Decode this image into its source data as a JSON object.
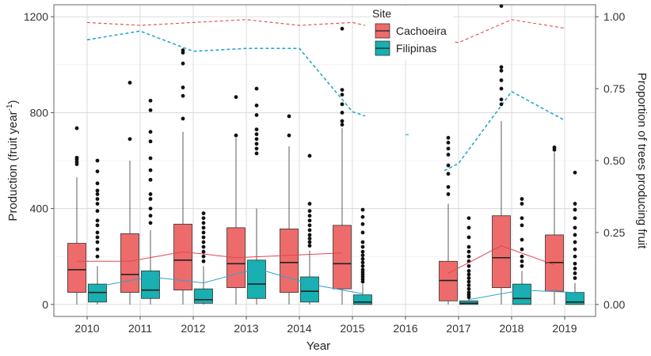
{
  "chart_data": {
    "type": "boxplot",
    "xlabel": "Year",
    "ylabel_left_main": "Production (fruit year",
    "ylabel_left_sup": "-1",
    "ylabel_left_end": ")",
    "ylabel_right": "Proportion of trees producing fruit",
    "categories": [
      "2010",
      "2011",
      "2012",
      "2013",
      "2014",
      "2015",
      "2016",
      "2017",
      "2018",
      "2019"
    ],
    "ylim_left": [
      -50,
      1250
    ],
    "yticks_left": [
      0,
      400,
      800,
      1200
    ],
    "ylim_right": [
      -0.0417,
      1.0417
    ],
    "yticks_right": [
      0.0,
      0.25,
      0.5,
      0.75,
      1.0
    ],
    "ytick_right_labels": [
      "0.00",
      "0.25",
      "0.50",
      "0.75",
      "1.00"
    ],
    "legend": {
      "title": "Site",
      "position": "top-center"
    },
    "colors": {
      "Cachoeira": "#ee6b6b",
      "Filipinas": "#18b0b0",
      "Cachoeira_dark": "#e0484f",
      "Filipinas_dark": "#2aa6cf"
    },
    "series": [
      {
        "name": "Cachoeira",
        "boxes": [
          {
            "year": "2010",
            "q1": 50,
            "median": 145,
            "q3": 255,
            "lo": 0,
            "hi": 530,
            "outliers": [
              585,
              595,
              605,
              612,
              735
            ]
          },
          {
            "year": "2011",
            "q1": 50,
            "median": 125,
            "q3": 295,
            "lo": 0,
            "hi": 600,
            "outliers": [
              690,
              925
            ]
          },
          {
            "year": "2012",
            "q1": 60,
            "median": 185,
            "q3": 335,
            "lo": 0,
            "hi": 720,
            "outliers": [
              775,
              870,
              905,
              1005,
              1050,
              1060
            ]
          },
          {
            "year": "2013",
            "q1": 70,
            "median": 170,
            "q3": 320,
            "lo": 0,
            "hi": 695,
            "outliers": [
              705,
              865
            ]
          },
          {
            "year": "2014",
            "q1": 50,
            "median": 175,
            "q3": 315,
            "lo": 0,
            "hi": 660,
            "outliers": [
              705,
              785
            ]
          },
          {
            "year": "2015",
            "q1": 65,
            "median": 170,
            "q3": 330,
            "lo": 0,
            "hi": 735,
            "outliers": [
              750,
              765,
              800,
              835,
              875,
              895,
              1150
            ]
          },
          {
            "year": "2017",
            "q1": 15,
            "median": 100,
            "q3": 180,
            "lo": 0,
            "hi": 420,
            "outliers": [
              460,
              490,
              545,
              580,
              625,
              650,
              675,
              695
            ]
          },
          {
            "year": "2018",
            "q1": 70,
            "median": 195,
            "q3": 370,
            "lo": 0,
            "hi": 765,
            "outliers": [
              835,
              855,
              900,
              935,
              975,
              990,
              1245
            ]
          },
          {
            "year": "2019",
            "q1": 55,
            "median": 175,
            "q3": 290,
            "lo": 0,
            "hi": 635,
            "outliers": [
              645,
              655
            ]
          }
        ],
        "line_left": [
          180,
          180,
          220,
          195,
          205,
          215
        ],
        "line_left_2017_2019": [
          130,
          245,
          165
        ],
        "proportion": [
          0.98,
          0.97,
          0.98,
          0.99,
          0.97,
          0.98
        ],
        "proportion_2017_2019": [
          0.91,
          0.99,
          0.96
        ]
      },
      {
        "name": "Filipinas",
        "boxes": [
          {
            "year": "2010",
            "q1": 10,
            "median": 50,
            "q3": 85,
            "lo": 0,
            "hi": 160,
            "outliers": [
              200,
              230,
              260,
              280,
              300,
              330,
              350,
              390,
              420,
              440,
              460,
              475,
              505,
              555,
              600
            ]
          },
          {
            "year": "2011",
            "q1": 25,
            "median": 60,
            "q3": 140,
            "lo": 0,
            "hi": 310,
            "outliers": [
              340,
              370,
              400,
              440,
              460,
              520,
              560,
              610,
              680,
              720,
              810,
              850
            ]
          },
          {
            "year": "2012",
            "q1": 5,
            "median": 20,
            "q3": 65,
            "lo": 0,
            "hi": 160,
            "outliers": [
              180,
              200,
              220,
              240,
              260,
              280,
              300,
              320,
              340,
              360,
              380
            ]
          },
          {
            "year": "2013",
            "q1": 25,
            "median": 85,
            "q3": 185,
            "lo": 0,
            "hi": 400,
            "outliers": [
              630,
              650,
              670,
              690,
              710,
              730,
              790,
              830,
              900
            ]
          },
          {
            "year": "2014",
            "q1": 10,
            "median": 55,
            "q3": 115,
            "lo": 0,
            "hi": 225,
            "outliers": [
              245,
              260,
              275,
              290,
              310,
              330,
              350,
              370,
              390,
              420,
              620
            ]
          },
          {
            "year": "2015",
            "q1": 0,
            "median": 10,
            "q3": 40,
            "lo": 0,
            "hi": 85,
            "outliers": [
              95,
              105,
              115,
              125,
              135,
              145,
              160,
              175,
              190,
              205,
              220,
              240,
              260,
              300,
              335,
              365,
              395
            ]
          },
          {
            "year": "2017",
            "q1": 0,
            "median": 5,
            "q3": 15,
            "lo": 0,
            "hi": 25,
            "outliers": [
              30,
              40,
              50,
              65,
              80,
              95,
              110,
              125,
              140,
              160,
              180,
              200,
              220,
              240,
              280,
              320,
              360
            ]
          },
          {
            "year": "2018",
            "q1": 0,
            "median": 25,
            "q3": 85,
            "lo": 0,
            "hi": 140,
            "outliers": [
              160,
              180,
              200,
              230,
              270,
              330,
              360,
              420,
              440
            ]
          },
          {
            "year": "2019",
            "q1": 0,
            "median": 10,
            "q3": 50,
            "lo": 0,
            "hi": 90,
            "outliers": [
              110,
              130,
              150,
              170,
              200,
              230,
              260,
              290,
              320,
              360,
              395,
              420,
              550
            ]
          }
        ],
        "line_left": [
          75,
          115,
          90,
          150,
          85,
          45
        ],
        "line_left_2017_2019": [
          20,
          60,
          50
        ],
        "proportion": [
          0.92,
          0.95,
          0.88,
          0.89,
          0.89,
          0.67
        ],
        "proportion_2017_2019": [
          0.49,
          0.74,
          0.64
        ]
      }
    ]
  }
}
